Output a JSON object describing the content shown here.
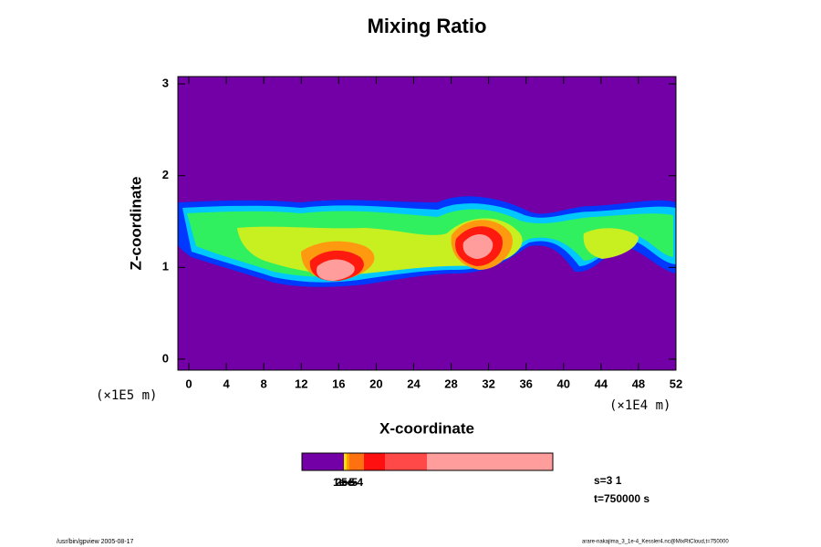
{
  "chart_data": {
    "type": "contour",
    "title": "Mixing Ratio",
    "x_label": "X-coordinate",
    "y_label": "Z-coordinate",
    "x_unit": "(×1E4 m)",
    "y_unit": "(×1E5 m)",
    "xlim": [
      -1.17,
      52
    ],
    "xticks": [
      0,
      4,
      8,
      12,
      16,
      20,
      24,
      28,
      32,
      36,
      40,
      44,
      48,
      52
    ],
    "ylim": [
      -0.12,
      3.08
    ],
    "yticks": [
      0,
      1,
      2,
      3
    ],
    "background_color": "#7200a6",
    "colorbar": {
      "colors": [
        "#7200a6",
        "#f8e000",
        "#ffa000",
        "#ff7010",
        "#ff1010",
        "#ff4848",
        "#ff9c9c"
      ],
      "tick_labels": [
        "1e-5",
        "2e-5",
        "5e-4"
      ]
    },
    "annotations": [
      "s=3 1",
      "t=750000 s"
    ],
    "footer_left": "/usr/bin/gpview 2005-08-17",
    "footer_right": "arare-nakajima_3_1e-4_Kessler4.nc@MixRtCloud,t=750000"
  }
}
